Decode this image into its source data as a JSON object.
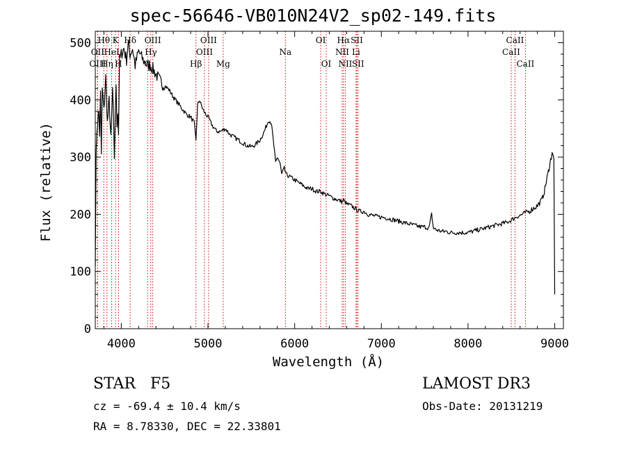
{
  "chart_data": {
    "type": "line",
    "title": "spec-56646-VB010N24V2_sp02-149.fits",
    "xlabel": "Wavelength (Å)",
    "ylabel": "Flux (relative)",
    "xlim": [
      3700,
      9100
    ],
    "ylim": [
      0,
      520
    ],
    "xticks": [
      4000,
      5000,
      6000,
      7000,
      8000,
      9000
    ],
    "yticks": [
      0,
      100,
      200,
      300,
      400,
      500
    ],
    "series": [
      {
        "name": "flux",
        "x": [
          3700,
          3710,
          3720,
          3740,
          3750,
          3760,
          3770,
          3780,
          3800,
          3820,
          3840,
          3860,
          3880,
          3900,
          3920,
          3940,
          3950,
          3960,
          3968,
          3980,
          4000,
          4030,
          4060,
          4080,
          4100,
          4130,
          4160,
          4200,
          4250,
          4300,
          4340,
          4380,
          4420,
          4460,
          4500,
          4550,
          4600,
          4650,
          4700,
          4750,
          4800,
          4840,
          4861,
          4880,
          4900,
          4950,
          5000,
          5050,
          5100,
          5150,
          5200,
          5250,
          5300,
          5350,
          5400,
          5450,
          5500,
          5550,
          5600,
          5650,
          5700,
          5730,
          5760,
          5780,
          5800,
          5830,
          5850,
          5880,
          5900,
          5950,
          6000,
          6050,
          6100,
          6150,
          6200,
          6250,
          6300,
          6350,
          6400,
          6450,
          6500,
          6550,
          6563,
          6600,
          6650,
          6700,
          6750,
          6800,
          6850,
          6900,
          6950,
          7000,
          7050,
          7100,
          7150,
          7200,
          7250,
          7300,
          7350,
          7400,
          7450,
          7500,
          7550,
          7580,
          7600,
          7620,
          7650,
          7700,
          7750,
          7800,
          7850,
          7900,
          7950,
          8000,
          8050,
          8100,
          8150,
          8200,
          8250,
          8300,
          8350,
          8400,
          8450,
          8500,
          8550,
          8600,
          8650,
          8700,
          8750,
          8800,
          8850,
          8880,
          8900,
          8920,
          8940,
          8960,
          8970,
          8980,
          8990,
          9000
        ],
        "y": [
          120,
          300,
          350,
          380,
          340,
          410,
          300,
          420,
          380,
          440,
          360,
          400,
          330,
          420,
          300,
          430,
          360,
          380,
          340,
          470,
          480,
          490,
          470,
          500,
          480,
          490,
          460,
          485,
          470,
          460,
          460,
          450,
          440,
          430,
          425,
          418,
          405,
          395,
          385,
          375,
          370,
          360,
          330,
          390,
          400,
          380,
          370,
          355,
          345,
          345,
          350,
          340,
          335,
          330,
          325,
          320,
          318,
          322,
          330,
          345,
          365,
          360,
          320,
          290,
          300,
          290,
          270,
          280,
          270,
          265,
          260,
          255,
          250,
          245,
          245,
          240,
          240,
          235,
          232,
          228,
          225,
          222,
          225,
          218,
          215,
          210,
          205,
          205,
          200,
          198,
          196,
          195,
          194,
          192,
          190,
          188,
          186,
          184,
          182,
          180,
          178,
          178,
          176,
          200,
          176,
          174,
          172,
          170,
          170,
          168,
          168,
          168,
          168,
          168,
          170,
          172,
          174,
          176,
          178,
          180,
          182,
          184,
          186,
          190,
          195,
          198,
          202,
          205,
          210,
          215,
          225,
          240,
          255,
          270,
          285,
          300,
          310,
          305,
          295,
          60
        ]
      }
    ],
    "line_markers": [
      {
        "label": "Hθ",
        "x": 3798,
        "row": 1
      },
      {
        "label": "OII",
        "x": 3727,
        "row": 2
      },
      {
        "label": "OIII",
        "x": 3727,
        "row": 3
      },
      {
        "label": "K",
        "x": 3934,
        "row": 1
      },
      {
        "label": "HeI",
        "x": 3889,
        "row": 2
      },
      {
        "label": "Hη",
        "x": 3835,
        "row": 3
      },
      {
        "label": "H",
        "x": 3968,
        "row": 3
      },
      {
        "label": "Hδ",
        "x": 4102,
        "row": 1
      },
      {
        "label": "OIII",
        "x": 4363,
        "row": 1
      },
      {
        "label": "Hγ",
        "x": 4341,
        "row": 2
      },
      {
        "label": "G",
        "x": 4304,
        "row": 3
      },
      {
        "label": "OIII",
        "x": 5007,
        "row": 1
      },
      {
        "label": "OIII",
        "x": 4959,
        "row": 2
      },
      {
        "label": "Hβ",
        "x": 4861,
        "row": 3
      },
      {
        "label": "Mg",
        "x": 5175,
        "row": 3
      },
      {
        "label": "Na",
        "x": 5893,
        "row": 2
      },
      {
        "label": "OI",
        "x": 6300,
        "row": 1
      },
      {
        "label": "OI",
        "x": 6364,
        "row": 3
      },
      {
        "label": "Hα",
        "x": 6563,
        "row": 1
      },
      {
        "label": "SII",
        "x": 6717,
        "row": 1
      },
      {
        "label": "NII",
        "x": 6548,
        "row": 2
      },
      {
        "label": "Li",
        "x": 6708,
        "row": 2
      },
      {
        "label": "NII",
        "x": 6584,
        "row": 3
      },
      {
        "label": "SII",
        "x": 6731,
        "row": 3
      },
      {
        "label": "CaII",
        "x": 8542,
        "row": 1
      },
      {
        "label": "CaII",
        "x": 8498,
        "row": 2
      },
      {
        "label": "CaII",
        "x": 8662,
        "row": 3
      }
    ]
  },
  "footer": {
    "object_class": "STAR",
    "subclass": "F5",
    "survey": "LAMOST DR3",
    "redshift": "cz = -69.4 ± 10.4 km/s",
    "obs_date": "Obs-Date: 20131219",
    "coords": "RA =   8.78330, DEC =  22.33801"
  }
}
